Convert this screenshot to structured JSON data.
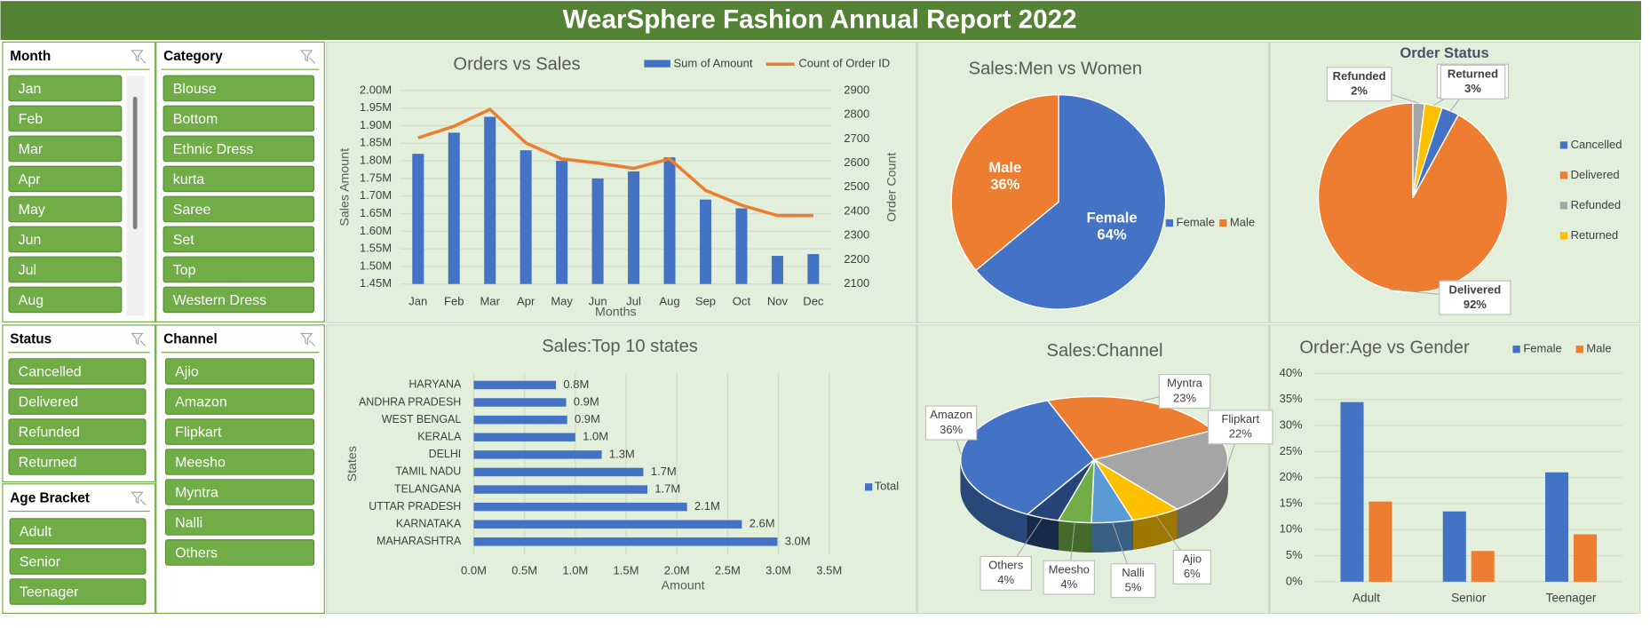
{
  "title": "WearSphere Fashion Annual Report 2022",
  "slicers": [
    {
      "title": "Month",
      "items": [
        "Jan",
        "Feb",
        "Mar",
        "Apr",
        "May",
        "Jun",
        "Jul",
        "Aug"
      ]
    },
    {
      "title": "Category",
      "items": [
        "Blouse",
        "Bottom",
        "Ethnic Dress",
        "kurta",
        "Saree",
        "Set",
        "Top",
        "Western Dress"
      ]
    },
    {
      "title": "Status",
      "items": [
        "Cancelled",
        "Delivered",
        "Refunded",
        "Returned"
      ]
    },
    {
      "title": "Channel",
      "items": [
        "Ajio",
        "Amazon",
        "Flipkart",
        "Meesho",
        "Myntra",
        "Nalli",
        "Others"
      ]
    },
    {
      "title": "Age Bracket",
      "items": [
        "Adult",
        "Senior",
        "Teenager"
      ]
    }
  ],
  "chart_data": [
    {
      "type": "combo",
      "title": "Orders vs Sales",
      "categories": [
        "Jan",
        "Feb",
        "Mar",
        "Apr",
        "May",
        "Jun",
        "Jul",
        "Aug",
        "Sep",
        "Oct",
        "Nov",
        "Dec"
      ],
      "series": [
        {
          "name": "Sum of Amount",
          "type": "bar",
          "color": "#4472c4",
          "values": [
            1820000,
            1880000,
            1925000,
            1830000,
            1800000,
            1750000,
            1770000,
            1810000,
            1690000,
            1665000,
            1530000,
            1535000
          ]
        },
        {
          "name": "Count of Order ID",
          "type": "line",
          "axis": "y2",
          "color": "#ed7d31",
          "values": [
            2704,
            2752,
            2822,
            2683,
            2617,
            2600,
            2578,
            2617,
            2487,
            2426,
            2383,
            2383
          ]
        }
      ],
      "ylim": [
        1450000,
        2000000
      ],
      "yticks": [
        {
          "value": 1450000,
          "label": "1.45M"
        },
        {
          "value": 1500000,
          "label": "1.50M"
        },
        {
          "value": 1550000,
          "label": "1.55M"
        },
        {
          "value": 1600000,
          "label": "1.60M"
        },
        {
          "value": 1650000,
          "label": "1.65M"
        },
        {
          "value": 1700000,
          "label": "1.70M"
        },
        {
          "value": 1750000,
          "label": "1.75M"
        },
        {
          "value": 1800000,
          "label": "1.80M"
        },
        {
          "value": 1850000,
          "label": "1.85M"
        },
        {
          "value": 1900000,
          "label": "1.90M"
        },
        {
          "value": 1950000,
          "label": "1.95M"
        },
        {
          "value": 2000000,
          "label": "2.00M"
        }
      ],
      "y2lim": [
        2100,
        2900
      ],
      "y2ticks": [
        2100,
        2200,
        2300,
        2400,
        2500,
        2600,
        2700,
        2800,
        2900
      ],
      "ylabel": "Sales Amount",
      "y2label": "Order Count",
      "xlabel": "Months",
      "grid": true,
      "legend": "top-right"
    },
    {
      "type": "pie",
      "title": "Sales:Men vs Women",
      "categories": [
        "Female",
        "Male"
      ],
      "values": [
        64,
        36
      ],
      "value_labels": [
        "64%",
        "36%"
      ],
      "colors": [
        "#4472c4",
        "#ed7d31"
      ],
      "legend": "right"
    },
    {
      "type": "pie",
      "title": "Order Status",
      "categories": [
        "Cancelled",
        "Delivered",
        "Refunded",
        "Returned"
      ],
      "values": [
        3,
        92,
        2,
        3
      ],
      "value_labels": [
        "3%",
        "92%",
        "2%",
        "3%"
      ],
      "colors": [
        "#4472c4",
        "#ed7d31",
        "#a5a5a5",
        "#ffc000"
      ],
      "legend": "right"
    },
    {
      "type": "bar",
      "orientation": "horizontal",
      "title": "Sales:Top 10 states",
      "categories": [
        "HARYANA",
        "ANDHRA PRADESH",
        "WEST BENGAL",
        "KERALA",
        "DELHI",
        "TAMIL NADU",
        "TELANGANA",
        "UTTAR PRADESH",
        "KARNATAKA",
        "MAHARASHTRA"
      ],
      "series": [
        {
          "name": "Total",
          "color": "#4472c4",
          "values": [
            810000,
            910000,
            920000,
            1000000,
            1260000,
            1670000,
            1710000,
            2100000,
            2640000,
            2990000
          ],
          "value_labels": [
            "0.8M",
            "0.9M",
            "0.9M",
            "1.0M",
            "1.3M",
            "1.7M",
            "1.7M",
            "2.1M",
            "2.6M",
            "3.0M"
          ]
        }
      ],
      "xlim": [
        0,
        3500000
      ],
      "xticks": [
        {
          "value": 0,
          "label": "0.0M"
        },
        {
          "value": 500000,
          "label": "0.5M"
        },
        {
          "value": 1000000,
          "label": "1.0M"
        },
        {
          "value": 1500000,
          "label": "1.5M"
        },
        {
          "value": 2000000,
          "label": "2.0M"
        },
        {
          "value": 2500000,
          "label": "2.5M"
        },
        {
          "value": 3000000,
          "label": "3.0M"
        },
        {
          "value": 3500000,
          "label": "3.5M"
        }
      ],
      "xlabel": "Amount",
      "ylabel": "States",
      "grid": true,
      "legend": "right"
    },
    {
      "type": "pie",
      "three_d": true,
      "title": "Sales:Channel",
      "categories": [
        "Amazon",
        "Myntra",
        "Flipkart",
        "Ajio",
        "Nalli",
        "Meesho",
        "Others"
      ],
      "values": [
        36,
        23,
        22,
        6,
        5,
        4,
        4
      ],
      "value_labels": [
        "36%",
        "23%",
        "22%",
        "6%",
        "5%",
        "4%",
        "4%"
      ],
      "colors": [
        "#4472c4",
        "#ed7d31",
        "#a5a5a5",
        "#ffc000",
        "#5b9bd5",
        "#70ad47",
        "#264478"
      ]
    },
    {
      "type": "bar",
      "title": "Order:Age vs Gender",
      "categories": [
        "Adult",
        "Senior",
        "Teenager"
      ],
      "series": [
        {
          "name": "Female",
          "color": "#4472c4",
          "values": [
            34.5,
            13.5,
            21
          ]
        },
        {
          "name": "Male",
          "color": "#ed7d31",
          "values": [
            15.4,
            5.9,
            9.1
          ]
        }
      ],
      "ylim": [
        0,
        40
      ],
      "yticks": [
        {
          "value": 0,
          "label": "0%"
        },
        {
          "value": 5,
          "label": "5%"
        },
        {
          "value": 10,
          "label": "10%"
        },
        {
          "value": 15,
          "label": "15%"
        },
        {
          "value": 20,
          "label": "20%"
        },
        {
          "value": 25,
          "label": "25%"
        },
        {
          "value": 30,
          "label": "30%"
        },
        {
          "value": 35,
          "label": "35%"
        },
        {
          "value": 40,
          "label": "40%"
        }
      ],
      "grid": true,
      "legend": "top-right"
    }
  ]
}
